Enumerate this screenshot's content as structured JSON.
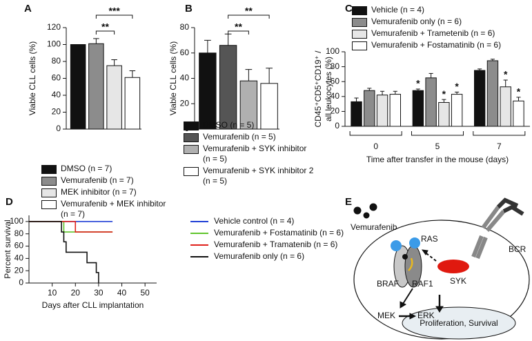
{
  "chart_data": [
    {
      "panel": "A",
      "type": "bar",
      "ylabel": "Viable CLL cells (%)",
      "categories": [
        "DMSO (n = 7)",
        "Vemurafenib (n = 7)",
        "MEK inhibitor (n = 7)",
        "Vemurafenib + MEK inhibitor (n = 7)"
      ],
      "values": [
        100,
        101,
        75,
        61
      ],
      "errors": [
        0,
        6,
        7,
        8
      ],
      "colors": [
        "#111111",
        "#8c8c8c",
        "#e6e6e6",
        "#ffffff"
      ],
      "ylim": [
        0,
        120
      ],
      "yticks": [
        0,
        20,
        40,
        60,
        80,
        100,
        120
      ],
      "significance": [
        {
          "label": "**",
          "from": 1,
          "to": 2
        },
        {
          "label": "***",
          "from": 1,
          "to": 3
        }
      ]
    },
    {
      "panel": "B",
      "type": "bar",
      "ylabel": "Viable CLL cells (%)",
      "categories": [
        "DMSO (n = 5)",
        "Vemurafenib (n = 5)",
        "Vemurafenib + SYK inhibitor (n = 5)",
        "Vemurafenib + SYK inhibitor 2 (n = 5)"
      ],
      "values": [
        60,
        66,
        38,
        36
      ],
      "errors": [
        10,
        9,
        9,
        12
      ],
      "colors": [
        "#111111",
        "#555555",
        "#b0b0b0",
        "#ffffff"
      ],
      "ylim": [
        0,
        80
      ],
      "yticks": [
        0,
        20,
        40,
        60,
        80
      ],
      "significance": [
        {
          "label": "**",
          "from": 1,
          "to": 2
        },
        {
          "label": "**",
          "from": 1,
          "to": 3
        }
      ]
    },
    {
      "panel": "C",
      "type": "grouped_bar",
      "ylabel": [
        "CD45⁺CD5⁺CD19⁺ /",
        "all leukocytes (%)"
      ],
      "xlabel": "Time after transfer in the mouse (days)",
      "categories": [
        "0",
        "5",
        "7"
      ],
      "series": [
        {
          "name": "Vehicle (n = 4)",
          "color": "#111111",
          "values": [
            33,
            48,
            75
          ],
          "errors": [
            5,
            2,
            2
          ],
          "significance": [
            null,
            "*",
            null
          ]
        },
        {
          "name": "Vemurafenib only (n = 6)",
          "color": "#8c8c8c",
          "values": [
            48,
            65,
            88
          ],
          "errors": [
            3,
            6,
            2
          ],
          "significance": [
            null,
            null,
            null
          ]
        },
        {
          "name": "Vemurafenib + Trametenib (n = 6)",
          "color": "#e6e6e6",
          "values": [
            42,
            32,
            53
          ],
          "errors": [
            5,
            4,
            9
          ],
          "significance": [
            null,
            "*",
            "*"
          ]
        },
        {
          "name": "Vemurafenib + Fostamatinib (n = 6)",
          "color": "#ffffff",
          "values": [
            43,
            43,
            34
          ],
          "errors": [
            4,
            3,
            5
          ],
          "significance": [
            null,
            "*",
            "*"
          ]
        }
      ],
      "ylim": [
        0,
        100
      ],
      "yticks": [
        0,
        20,
        40,
        60,
        80,
        100
      ]
    },
    {
      "panel": "D",
      "type": "step_line",
      "ylabel": "Percent survival",
      "xlabel": "Days after CLL implantation",
      "series": [
        {
          "name": "Vehicle control (n = 4)",
          "color": "#1f3fd6",
          "x": [
            0,
            36
          ],
          "values": [
            100,
            100
          ]
        },
        {
          "name": "Vemurafenib + Fostamatinib (n = 6)",
          "color": "#5fc42a",
          "x": [
            0,
            15,
            36
          ],
          "values": [
            100,
            83,
            83
          ]
        },
        {
          "name": "Vemurafenib + Tramatenib (n = 6)",
          "color": "#e0201a",
          "x": [
            0,
            20,
            36
          ],
          "values": [
            100,
            83,
            83
          ]
        },
        {
          "name": "Vemurafenib only (n = 6)",
          "color": "#111111",
          "x": [
            0,
            14,
            15,
            16,
            25,
            29,
            30
          ],
          "values": [
            100,
            83,
            67,
            50,
            33,
            17,
            0
          ]
        }
      ],
      "xlim": [
        0,
        55
      ],
      "xticks": [
        10,
        20,
        30,
        40,
        50
      ],
      "ylim": [
        0,
        110
      ],
      "yticks": [
        0,
        20,
        40,
        60,
        80,
        100
      ]
    }
  ],
  "diagram": {
    "panel": "E",
    "labels": {
      "drug": "Vemurafenib",
      "ras": "RAS",
      "bcr": "BCR",
      "braf": "BRAF",
      "raf1": "RAF1",
      "syk": "SYK",
      "mek": "MEK",
      "erk": "ERK",
      "outcome": "Proliferation, Survival"
    }
  }
}
